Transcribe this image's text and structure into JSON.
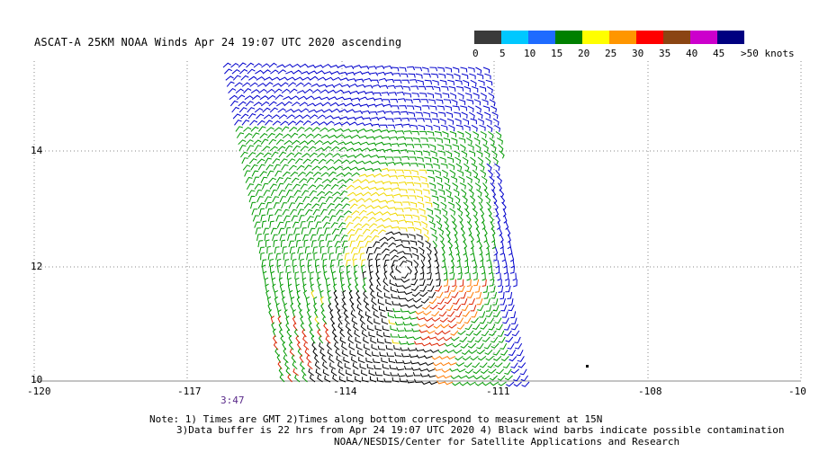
{
  "title": "ASCAT-A 25KM NOAA Winds Apr 24 19:07 UTC 2020 ascending",
  "legend": {
    "colors": [
      "#3a3a3a",
      "#00c8ff",
      "#1e6bff",
      "#008000",
      "#ffff00",
      "#ff9600",
      "#ff0000",
      "#8b4513",
      "#cc00cc",
      "#000080"
    ],
    "labels": [
      "0",
      "5",
      "10",
      "15",
      "20",
      "25",
      "30",
      "35",
      "40",
      "45",
      ">50 knots"
    ]
  },
  "axes": {
    "lon_ticks": [
      "-120",
      "-117",
      "-114",
      "-111",
      "-108",
      "-10"
    ],
    "lat_ticks": [
      "14",
      "12",
      "10"
    ],
    "lon_range": [
      -120,
      -105
    ],
    "lat_range": [
      10,
      15.6
    ]
  },
  "time_label": "3:47",
  "notes": [
    "Note: 1) Times are GMT 2)Times along bottom correspond to measurement at 15N",
    "3)Data buffer is 22 hrs from Apr 24 19:07 UTC 2020 4) Black wind barbs indicate possible contamination",
    "NOAA/NESDIS/Center for Satellite Applications and Research"
  ],
  "colors": {
    "blue": "#0000cc",
    "green": "#009900",
    "yellow": "#f0d800",
    "orange": "#ff7a00",
    "red": "#dd2200",
    "black": "#000000",
    "grid": "#8a8a8a"
  }
}
